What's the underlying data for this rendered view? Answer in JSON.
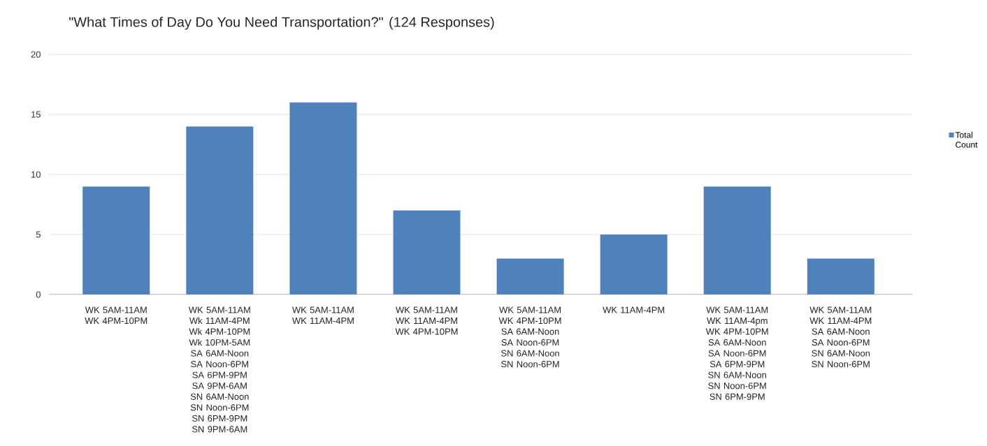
{
  "chart_data": {
    "type": "bar",
    "title": "\"What Times of Day Do You Need Transportation?\" (124 Responses)",
    "categories": [
      "WK 5AM-11AM WK 4PM-10PM",
      "WK 5AM-11AM Wk 11AM-4PM Wk 4PM-10PM Wk 10PM-5AM SA 6AM-Noon SA Noon-6PM SA 6PM-9PM SA 9PM-6AM SN 6AM-Noon SN Noon-6PM SN 6PM-9PM SN 9PM-6AM",
      "WK 5AM-11AM WK 11AM-4PM",
      "WK 5AM-11AM WK 11AM-4PM WK 4PM-10PM",
      "WK 5AM-11AM WK 4PM-10PM SA 6AM-Noon SA Noon-6PM SN 6AM-Noon SN Noon-6PM",
      "WK 11AM-4PM",
      "WK 5AM-11AM WK 11AM-4pm WK 4PM-10PM SA 6AM-Noon SA Noon-6PM SA 6PM-9PM SN 6AM-Noon SN Noon-6PM SN 6PM-9PM",
      "WK 5AM-11AM WK 11AM-4PM SA 6AM-Noon SA Noon-6PM SN 6AM-Noon SN Noon-6PM"
    ],
    "series": [
      {
        "name": "Total Count",
        "color": "#4f81bd",
        "values": [
          9,
          14,
          16,
          7,
          3,
          5,
          9,
          3
        ]
      }
    ],
    "ylim": [
      0,
      20
    ],
    "yticks": [
      0,
      5,
      10,
      15,
      20
    ],
    "grid": "y",
    "legend": "right"
  }
}
